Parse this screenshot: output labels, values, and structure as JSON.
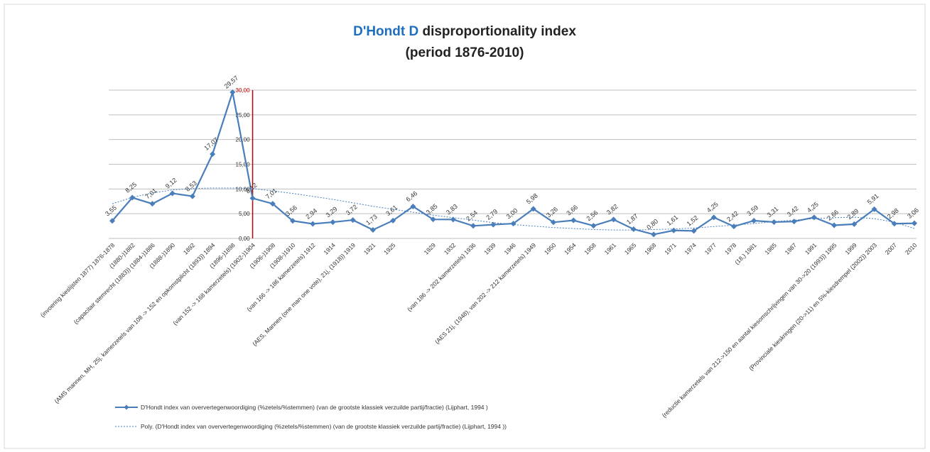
{
  "chart_data": {
    "type": "line",
    "title_lead": "D'Hondt D",
    "title": "disproportionality index",
    "subtitle": "(period 1876-2010)",
    "categories": [
      "(invoering kieslijsten 1877) 1876-1878",
      "(1880-)1882",
      "(capacitair stemrecht (1883)) (1884-)1886",
      "(1888-)1890",
      "1892",
      "(AMS mannen, MH, 25j, kamerzetels van 108 -> 152 en opkomstplicht (1893)) 1894",
      "(1896-)1898",
      "(van 152 -> 168 kamerzetels) (1902-)1904",
      "(1906-)1908",
      "(1908-)1910",
      "(van 166 -> 186 kamerzetels) 1912",
      "1914",
      "(AES, Mannen (one man one vote), 21j, (1918)) 1919",
      "1921",
      "1925",
      null,
      "1929",
      "1932",
      "(van 186 -> 202 kamerzetels) 1936",
      "1939",
      "1946",
      "(AES 21j, (1948), van 202 -> 212 kamerzetels) 1949",
      "1950",
      "1954",
      "1958",
      "1961",
      "1965",
      "1968",
      "1971",
      "1974",
      "1977",
      "1978",
      "(18,) 1981",
      "1985",
      "1987",
      "1991",
      "(reductie kamerzetels van 212->150 en aantal kiesomschrijvingen van 30->20 (1993)) 1995",
      "1999",
      "(Provinciale kieskringen (20->11) en 5%-kiesdrempel (2002)) 2003",
      "2007",
      "2010"
    ],
    "series": [
      {
        "name": "D'Hondt index van oververtegenwoordiging (%zetels/%stemmen) (van de grootste klassiek verzuilde partij/fractie) (Lijphart, 1994 )",
        "color": "#4a7ebb",
        "values": [
          3.55,
          8.25,
          7.01,
          9.12,
          8.53,
          17.07,
          29.57,
          8.12,
          7.01,
          3.56,
          2.94,
          3.29,
          3.72,
          1.73,
          3.61,
          6.46,
          3.85,
          3.83,
          2.54,
          2.79,
          3.0,
          5.98,
          3.26,
          3.66,
          2.56,
          3.82,
          1.87,
          0.8,
          1.61,
          1.52,
          4.25,
          2.42,
          3.59,
          3.31,
          3.42,
          4.25,
          2.66,
          2.89,
          5.91,
          2.98,
          3.06
        ],
        "value_labels": [
          "3,55",
          "8,25",
          "7,01",
          "9,12",
          "8,53",
          "17,07",
          "29,57",
          "8,12",
          "7,01",
          "3,56",
          "2,94",
          "3,29",
          "3,72",
          "1,73",
          "3,61",
          "6,46",
          "3,85",
          "3,83",
          "2,54",
          "2,79",
          "3,00",
          "5,98",
          "3,26",
          "3,66",
          "2,56",
          "3,82",
          "1,87",
          "0,80",
          "1,61",
          "1,52",
          "4,25",
          "2,42",
          "3,59",
          "3,31",
          "3,42",
          "4,25",
          "2,66",
          "2,89",
          "5,91",
          "2,98",
          "3,06"
        ]
      },
      {
        "name": "Poly. (D'Hondt index van oververtegenwoordiging (%zetels/%stemmen) (van de grootste klassiek verzuilde partij/fractie) (Lijphart, 1994 ))",
        "color": "#4a7ebb",
        "dashed": true,
        "values": [
          7.0,
          8.3,
          9.2,
          9.8,
          10.1,
          10.2,
          10.2,
          10.1,
          9.6,
          9.1,
          8.5,
          7.9,
          7.2,
          6.5,
          5.9,
          5.3,
          4.7,
          4.2,
          3.7,
          3.2,
          2.8,
          2.5,
          2.2,
          2.0,
          1.8,
          1.7,
          1.7,
          1.8,
          1.9,
          2.1,
          2.4,
          2.7,
          3.0,
          3.4,
          3.7,
          4.0,
          4.2,
          4.3,
          4.0,
          3.3,
          2.0
        ]
      }
    ],
    "ylim": [
      0,
      30
    ],
    "yticks": [
      {
        "value": 0,
        "label": "0,00"
      },
      {
        "value": 5,
        "label": "5,00"
      },
      {
        "value": 10,
        "label": "10,00"
      },
      {
        "value": 15,
        "label": "15,00"
      },
      {
        "value": 20,
        "label": "20,00"
      },
      {
        "value": 25,
        "label": "25,00"
      },
      {
        "value": 30,
        "label": "30,00"
      }
    ],
    "grid": true,
    "axis_color": "#c00000",
    "legend": "bottom-left"
  }
}
